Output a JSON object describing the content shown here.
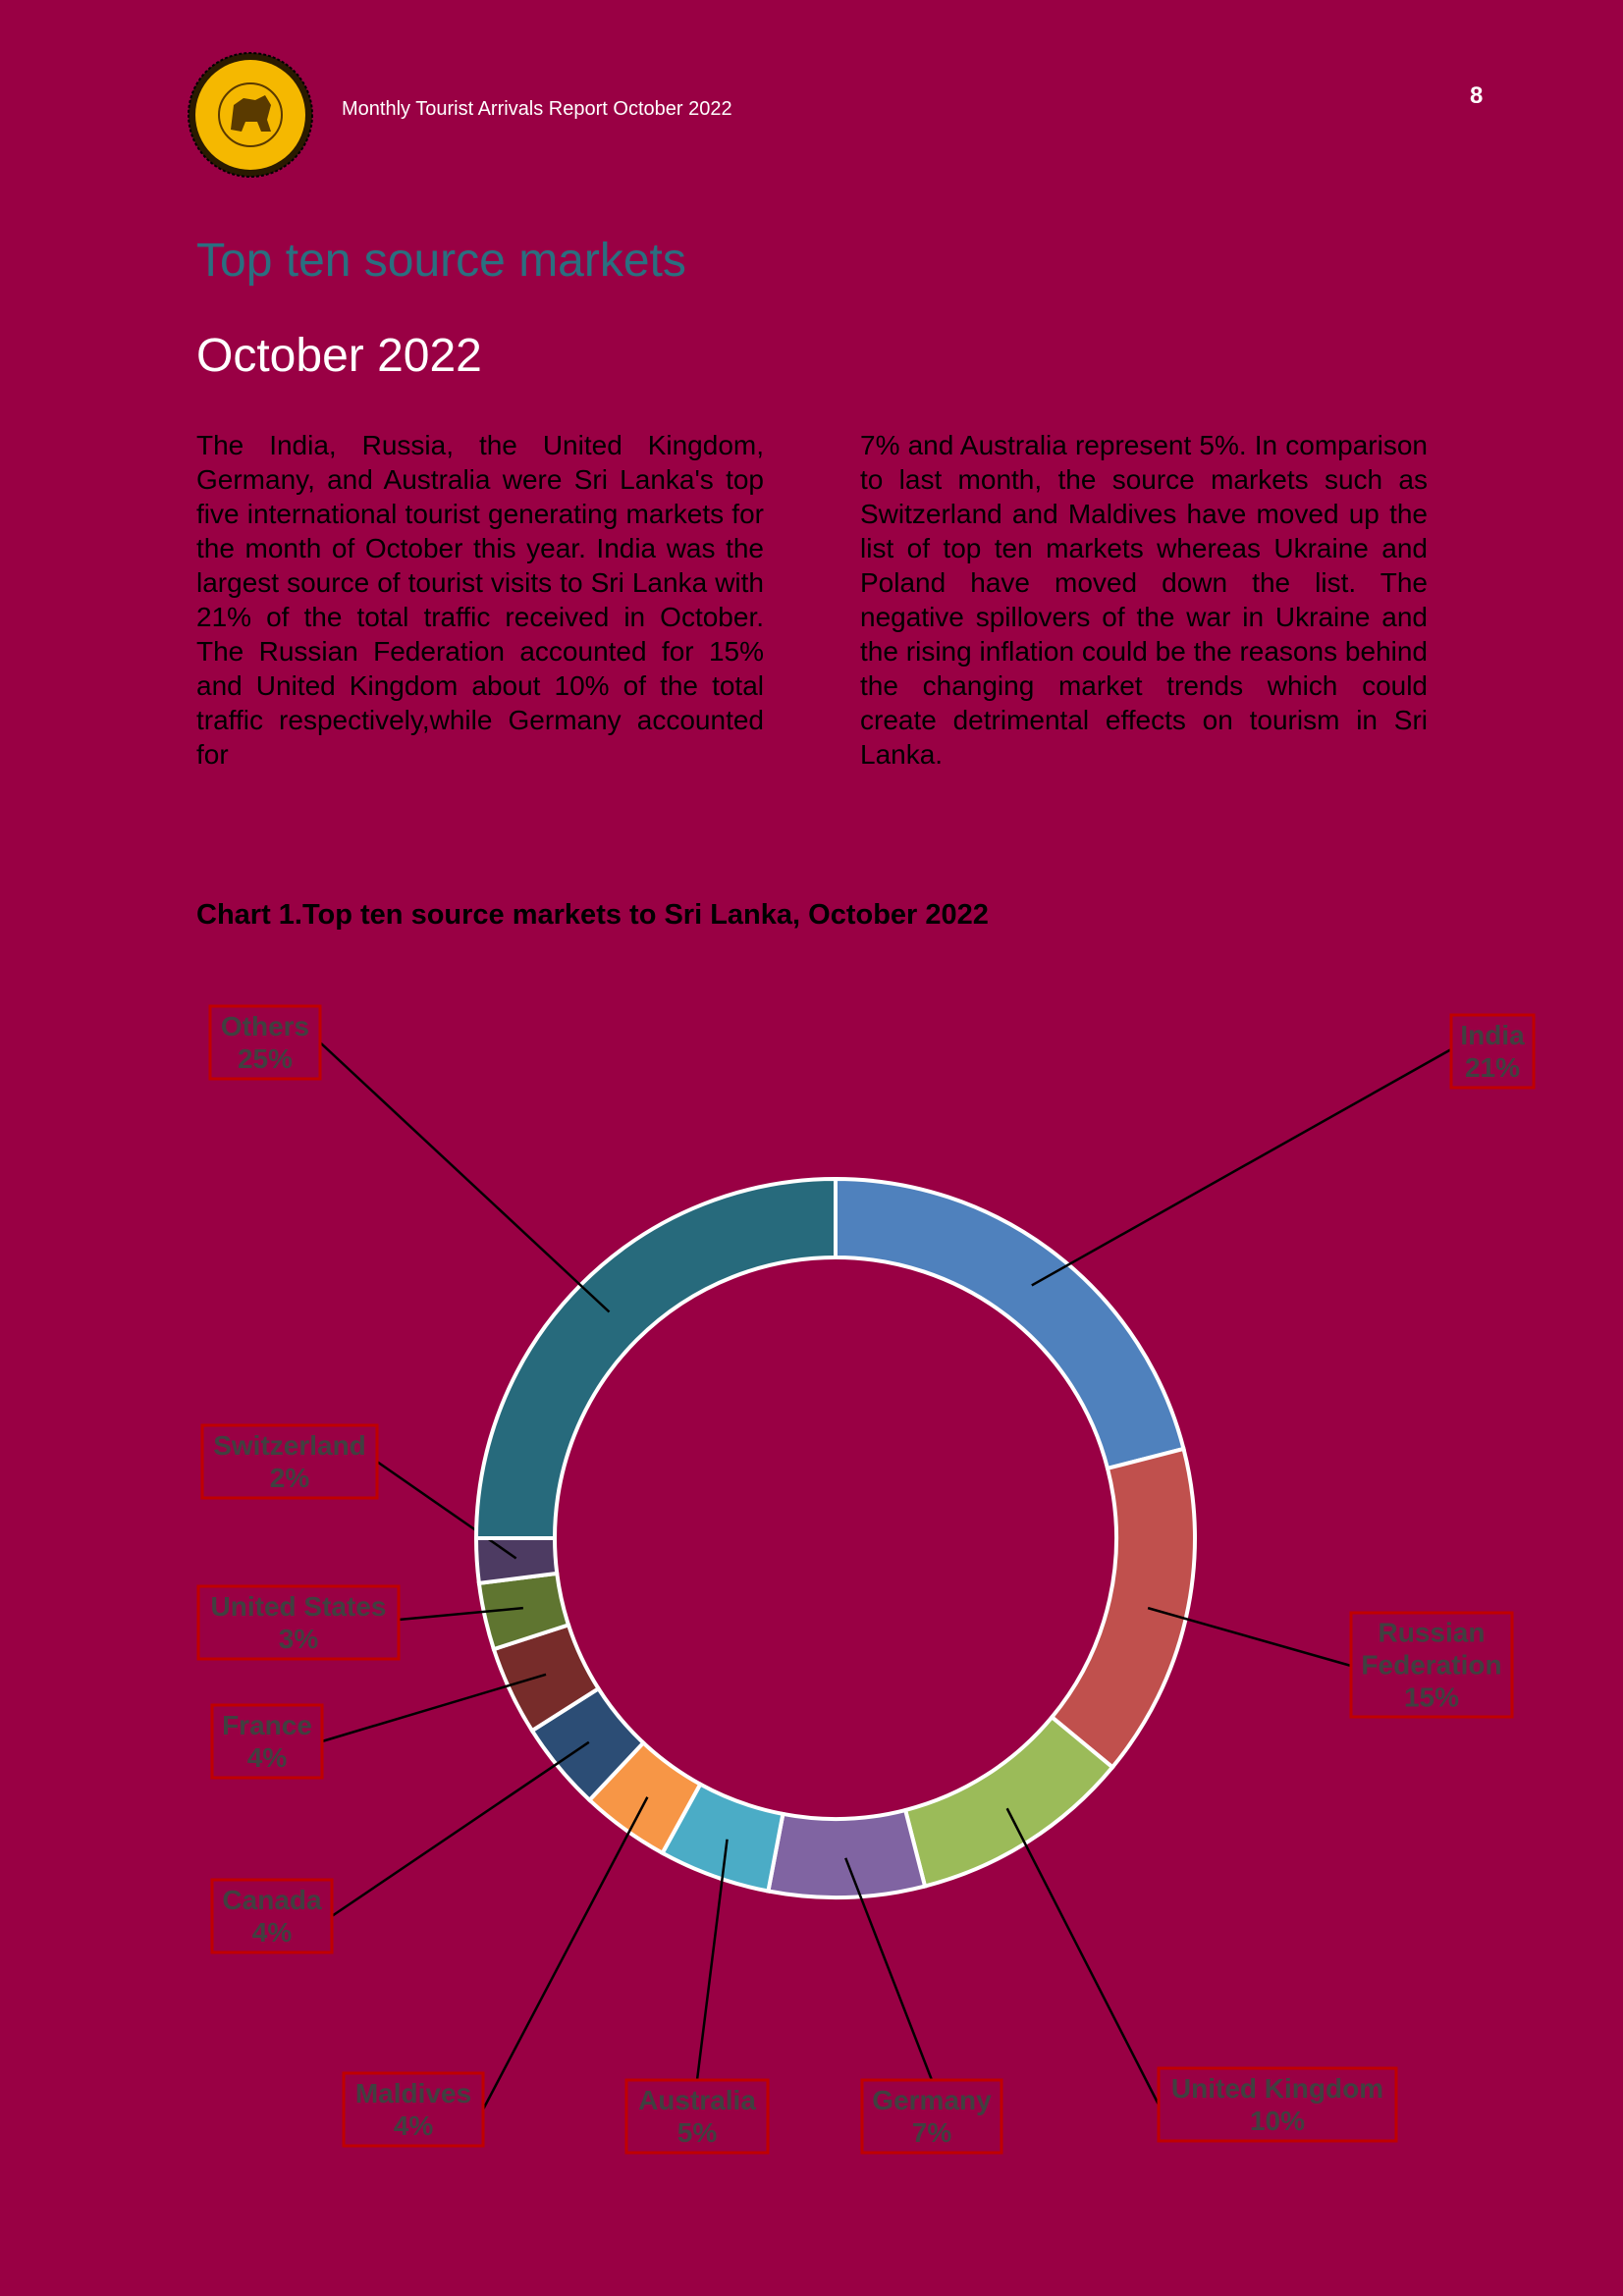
{
  "header": {
    "title": "Monthly Tourist Arrivals Report October 2022",
    "page_number": "8",
    "logo_text": "SRI LANKA TOURISM DEVELOPMENT AUTHORITY"
  },
  "section": {
    "title": "Top ten source markets",
    "subtitle": "October 2022"
  },
  "body": {
    "left": "The India, Russia, the United Kingdom, Germany, and Australia were Sri Lanka's top five international tourist generating markets for the month of October this year. India was the largest source of tourist visits to Sri Lanka with 21% of the total traffic received in October. The Russian Federation accounted for 15% and United Kingdom about 10% of the total traffic respectively,while Germany accounted for",
    "right": "7% and Australia represent 5%. In comparison to last month, the source markets such as Switzerland and Maldives have moved up the list of top ten markets whereas Ukraine and Poland have moved down the list. The negative spillovers of the war in Ukraine and the rising inflation could be the reasons behind the changing market trends which could create detrimental effects on tourism in Sri Lanka."
  },
  "chart_data": {
    "type": "pie",
    "title": "Chart 1.Top ten source markets to Sri Lanka, October 2022",
    "donut": true,
    "unit": "%",
    "slices": [
      {
        "label": "India",
        "value": 21,
        "value_text": "21%",
        "color": "#4f81bd"
      },
      {
        "label": "Russian Federation",
        "value": 15,
        "value_text": "15%",
        "color": "#c0504d"
      },
      {
        "label": "United Kingdom",
        "value": 10,
        "value_text": "10%",
        "color": "#9bbb59"
      },
      {
        "label": "Germany",
        "value": 7,
        "value_text": "7%",
        "color": "#8064a2"
      },
      {
        "label": "Australia",
        "value": 5,
        "value_text": "5%",
        "color": "#4bacc6"
      },
      {
        "label": "Maldives",
        "value": 4,
        "value_text": "4%",
        "color": "#f79646"
      },
      {
        "label": "Canada",
        "value": 4,
        "value_text": "4%",
        "color": "#2c4d75"
      },
      {
        "label": "France",
        "value": 4,
        "value_text": "4%",
        "color": "#772c2a"
      },
      {
        "label": "United States",
        "value": 3,
        "value_text": "3%",
        "color": "#5f7530"
      },
      {
        "label": "Switzerland",
        "value": 2,
        "value_text": "2%",
        "color": "#4d3b62"
      },
      {
        "label": "Others",
        "value": 25,
        "value_text": "25%",
        "color": "#276a7c"
      }
    ]
  }
}
